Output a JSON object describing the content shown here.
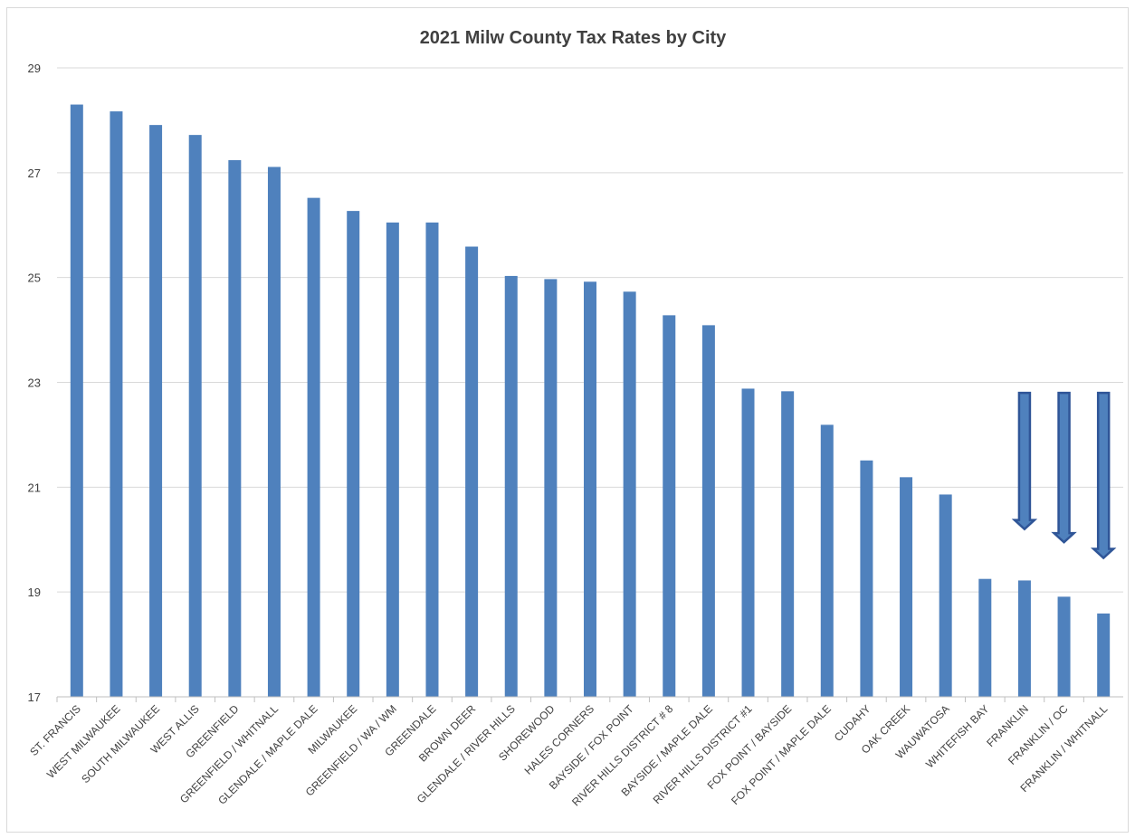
{
  "chart_data": {
    "type": "bar",
    "title": "2021 Milw County Tax Rates by City",
    "xlabel": "",
    "ylabel": "",
    "ylim": [
      17,
      29
    ],
    "yticks": [
      17,
      19,
      21,
      23,
      25,
      27,
      29
    ],
    "grid": true,
    "legend": "none",
    "bar_color": "#4f81bd",
    "gridline_color": "#d9d9d9",
    "categories": [
      "ST. FRANCIS",
      "WEST MILWAUKEE",
      "SOUTH MILWAUKEE",
      "WEST ALLIS",
      "GREENFIELD",
      "GREENFIELD / WHITNALL",
      "GLENDALE / MAPLE DALE",
      "MILWAUKEE",
      "GREENFIELD / WA / WM",
      "GREENDALE",
      "BROWN DEER",
      "GLENDALE / RIVER HILLS",
      "SHOREWOOD",
      "HALES CORNERS",
      "BAYSIDE / FOX POINT",
      "RIVER HILLS DISTRICT # 8",
      "BAYSIDE / MAPLE DALE",
      "RIVER HILLS DISTRICT #1",
      "FOX POINT / BAYSIDE",
      "FOX POINT / MAPLE DALE",
      "CUDAHY",
      "OAK CREEK",
      "WAUWATOSA",
      "WHITEFISH BAY",
      "FRANKLIN",
      "FRANKLIN / OC",
      "FRANKLIN / WHITNALL"
    ],
    "values": [
      28.3,
      28.17,
      27.91,
      27.72,
      27.24,
      27.11,
      26.52,
      26.27,
      26.05,
      26.05,
      25.59,
      25.03,
      24.97,
      24.92,
      24.73,
      24.28,
      24.09,
      22.88,
      22.83,
      22.19,
      21.51,
      21.19,
      20.86,
      19.25,
      19.22,
      18.91,
      18.59
    ],
    "annotations": [
      {
        "type": "down-arrow",
        "category": "FRANKLIN",
        "from": 22.8,
        "to": 20.2
      },
      {
        "type": "down-arrow",
        "category": "FRANKLIN / OC",
        "from": 22.8,
        "to": 19.95
      },
      {
        "type": "down-arrow",
        "category": "FRANKLIN / WHITNALL",
        "from": 22.8,
        "to": 19.65
      }
    ],
    "arrow_fill": "#4f81bd",
    "arrow_stroke": "#2f5597"
  }
}
